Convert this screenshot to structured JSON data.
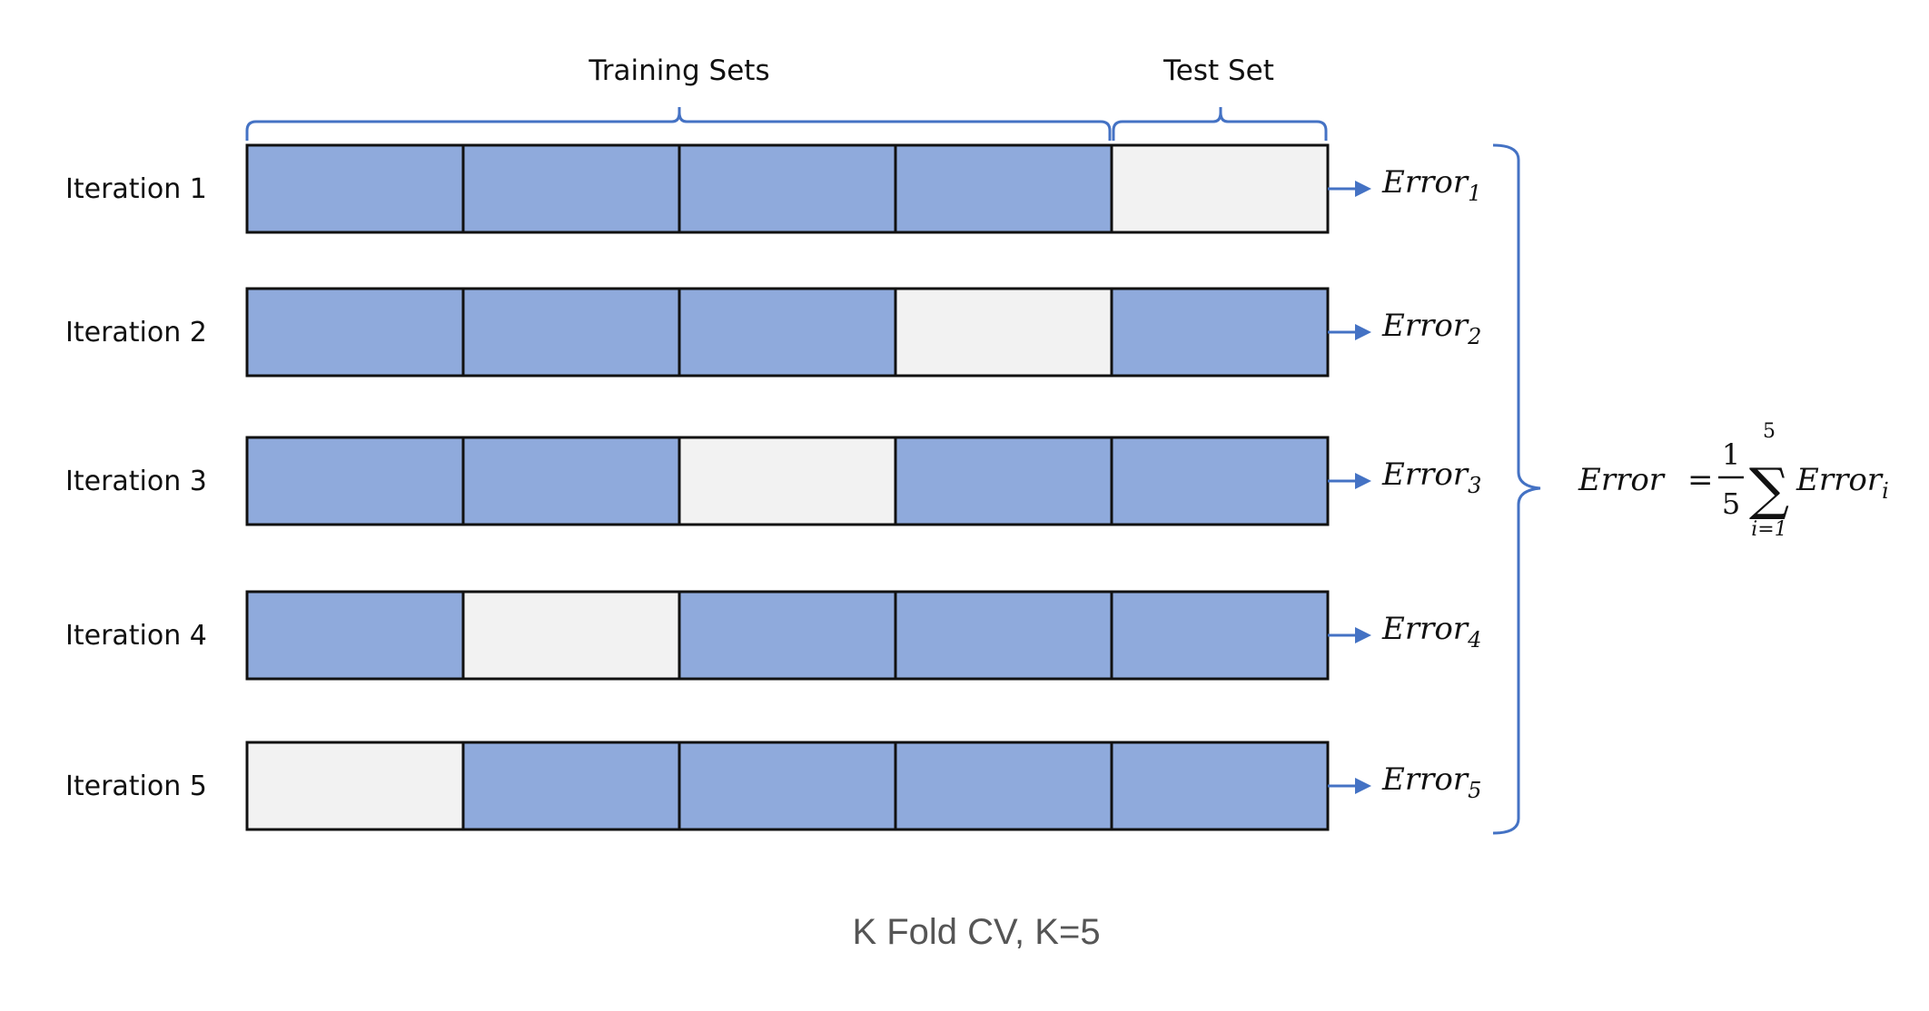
{
  "headers": {
    "training": "Training Sets",
    "test": "Test Set"
  },
  "iterations": [
    {
      "label": "Iteration 1",
      "test_fold": 5,
      "error_base": "Error",
      "error_sub": "1"
    },
    {
      "label": "Iteration 2",
      "test_fold": 4,
      "error_base": "Error",
      "error_sub": "2"
    },
    {
      "label": "Iteration 3",
      "test_fold": 3,
      "error_base": "Error",
      "error_sub": "3"
    },
    {
      "label": "Iteration 4",
      "test_fold": 2,
      "error_base": "Error",
      "error_sub": "4"
    },
    {
      "label": "Iteration 5",
      "test_fold": 1,
      "error_base": "Error",
      "error_sub": "5"
    }
  ],
  "folds_per_row": 5,
  "formula": {
    "lhs": "Error",
    "equals": "=",
    "numerator": "1",
    "denominator": "5",
    "sum_upper": "5",
    "sum_lower": "i=1",
    "term_base": "Error",
    "term_sub": "i"
  },
  "caption": "K Fold CV, K=5",
  "colors": {
    "train_fold": "#8faadc",
    "test_fold": "#f2f2f2",
    "border": "#111111",
    "accent": "#4472c4",
    "caption": "#555555"
  }
}
